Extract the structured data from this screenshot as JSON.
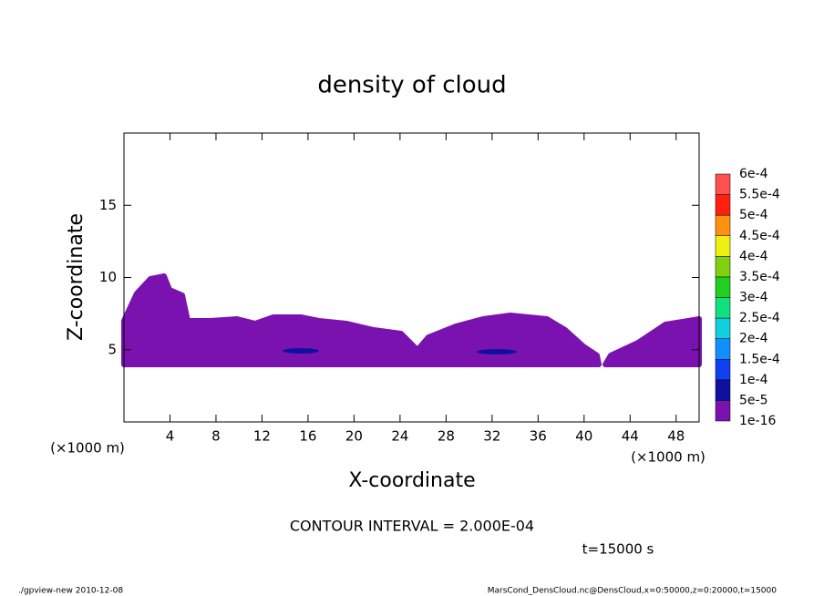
{
  "chart_data": {
    "type": "contour",
    "title": "density of cloud",
    "xlabel": "X-coordinate",
    "ylabel": "Z-coordinate",
    "x_unit_label": "(×1000 m)",
    "xlim": [
      0,
      50
    ],
    "xticks": [
      4,
      8,
      12,
      16,
      20,
      24,
      28,
      32,
      36,
      40,
      44,
      48
    ],
    "ylim": [
      0,
      20
    ],
    "yticks": [
      5,
      10,
      15
    ],
    "levels": [
      {
        "value": 1e-16,
        "label": "1e-16"
      },
      {
        "value": 5e-05,
        "label": "5e-5"
      },
      {
        "value": 0.0001,
        "label": "1e-4"
      },
      {
        "value": 0.00015,
        "label": "1.5e-4"
      },
      {
        "value": 0.0002,
        "label": "2e-4"
      },
      {
        "value": 0.00025,
        "label": "2.5e-4"
      },
      {
        "value": 0.0003,
        "label": "3e-4"
      },
      {
        "value": 0.00035,
        "label": "3.5e-4"
      },
      {
        "value": 0.0004,
        "label": "4e-4"
      },
      {
        "value": 0.00045,
        "label": "4.5e-4"
      },
      {
        "value": 0.0005,
        "label": "5e-4"
      },
      {
        "value": 0.00055,
        "label": "5.5e-4"
      },
      {
        "value": 0.0006,
        "label": "6e-4"
      }
    ],
    "colors": [
      "#7a12b0",
      "#1010a0",
      "#1040f0",
      "#1090ff",
      "#10d0e0",
      "#10e080",
      "#20d020",
      "#80d010",
      "#f0f010",
      "#ff9010",
      "#ff2010",
      "#ff5050",
      "#ff9090"
    ],
    "annotation": "CONTOUR INTERVAL = 2.000E-04",
    "time_label": "t=15000 s",
    "footer_left": "./gpview-new   2010-12-08",
    "footer_right": "MarsCond_DensCloud.nc@DensCloud,x=0:50000,z=0:20000,t=15000"
  }
}
